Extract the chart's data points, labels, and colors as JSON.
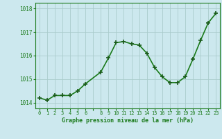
{
  "x": [
    0,
    1,
    2,
    3,
    4,
    5,
    6,
    8,
    9,
    10,
    11,
    12,
    13,
    14,
    15,
    16,
    17,
    18,
    19,
    20,
    21,
    22,
    23
  ],
  "y": [
    1014.2,
    1014.1,
    1014.3,
    1014.3,
    1014.3,
    1014.5,
    1014.8,
    1015.3,
    1015.9,
    1016.55,
    1016.6,
    1016.5,
    1016.45,
    1016.1,
    1015.5,
    1015.1,
    1014.85,
    1014.85,
    1015.1,
    1015.85,
    1016.65,
    1017.4,
    1017.8
  ],
  "line_color": "#1a7a1a",
  "marker": "+",
  "marker_size": 4,
  "bg_color": "#cce8ee",
  "grid_color": "#aacccc",
  "xlabel": "Graphe pression niveau de la mer (hPa)",
  "ylabel_ticks": [
    1014,
    1015,
    1016,
    1017,
    1018
  ],
  "ylim": [
    1013.75,
    1018.25
  ],
  "xlim": [
    -0.5,
    23.5
  ],
  "xtick_labels": [
    "0",
    "1",
    "2",
    "3",
    "4",
    "5",
    "6",
    "",
    "8",
    "9",
    "10",
    "11",
    "12",
    "13",
    "14",
    "15",
    "16",
    "17",
    "18",
    "19",
    "20",
    "21",
    "22",
    "23"
  ],
  "tick_color": "#1a7a1a",
  "spine_color": "#1a7a1a",
  "line_width": 1.2,
  "marker_color": "#1a5a1a"
}
